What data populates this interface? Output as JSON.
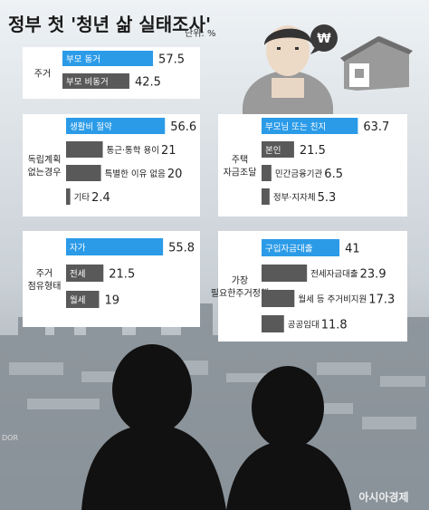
{
  "page": {
    "title": "정부 첫 '청년 삶 실태조사'",
    "unit": "단위: %",
    "credit": "아시아경제",
    "photo_credit": "DOR"
  },
  "colors": {
    "highlight": "#2b9be8",
    "bar_gray": "#595959",
    "panel_bg": "#ffffff",
    "text": "#222222"
  },
  "chart_data": [
    {
      "type": "bar",
      "title": "주거",
      "categories": [
        "부모 동거",
        "부모 비동거"
      ],
      "values": [
        57.5,
        42.5
      ]
    },
    {
      "type": "bar",
      "title": "독립계획 없는 경우",
      "categories": [
        "생활비 절약",
        "통근·통학 용이",
        "특별한 이유 없음",
        "기타"
      ],
      "values": [
        56.6,
        21,
        20,
        2.4
      ]
    },
    {
      "type": "bar",
      "title": "주택 자금조달",
      "categories": [
        "부모님 또는 친지",
        "본인",
        "민간금융기관",
        "정부·지자체"
      ],
      "values": [
        63.7,
        21.5,
        6.5,
        5.3
      ]
    },
    {
      "type": "bar",
      "title": "주거 점유 형태",
      "categories": [
        "자가",
        "전세",
        "월세"
      ],
      "values": [
        55.8,
        21.5,
        19
      ]
    },
    {
      "type": "bar",
      "title": "가장 필요한 주거정책",
      "categories": [
        "구입자금대출",
        "전세자금대출",
        "월세 등 주거비지원",
        "공공임대"
      ],
      "values": [
        41,
        23.9,
        17.3,
        11.8
      ]
    }
  ]
}
